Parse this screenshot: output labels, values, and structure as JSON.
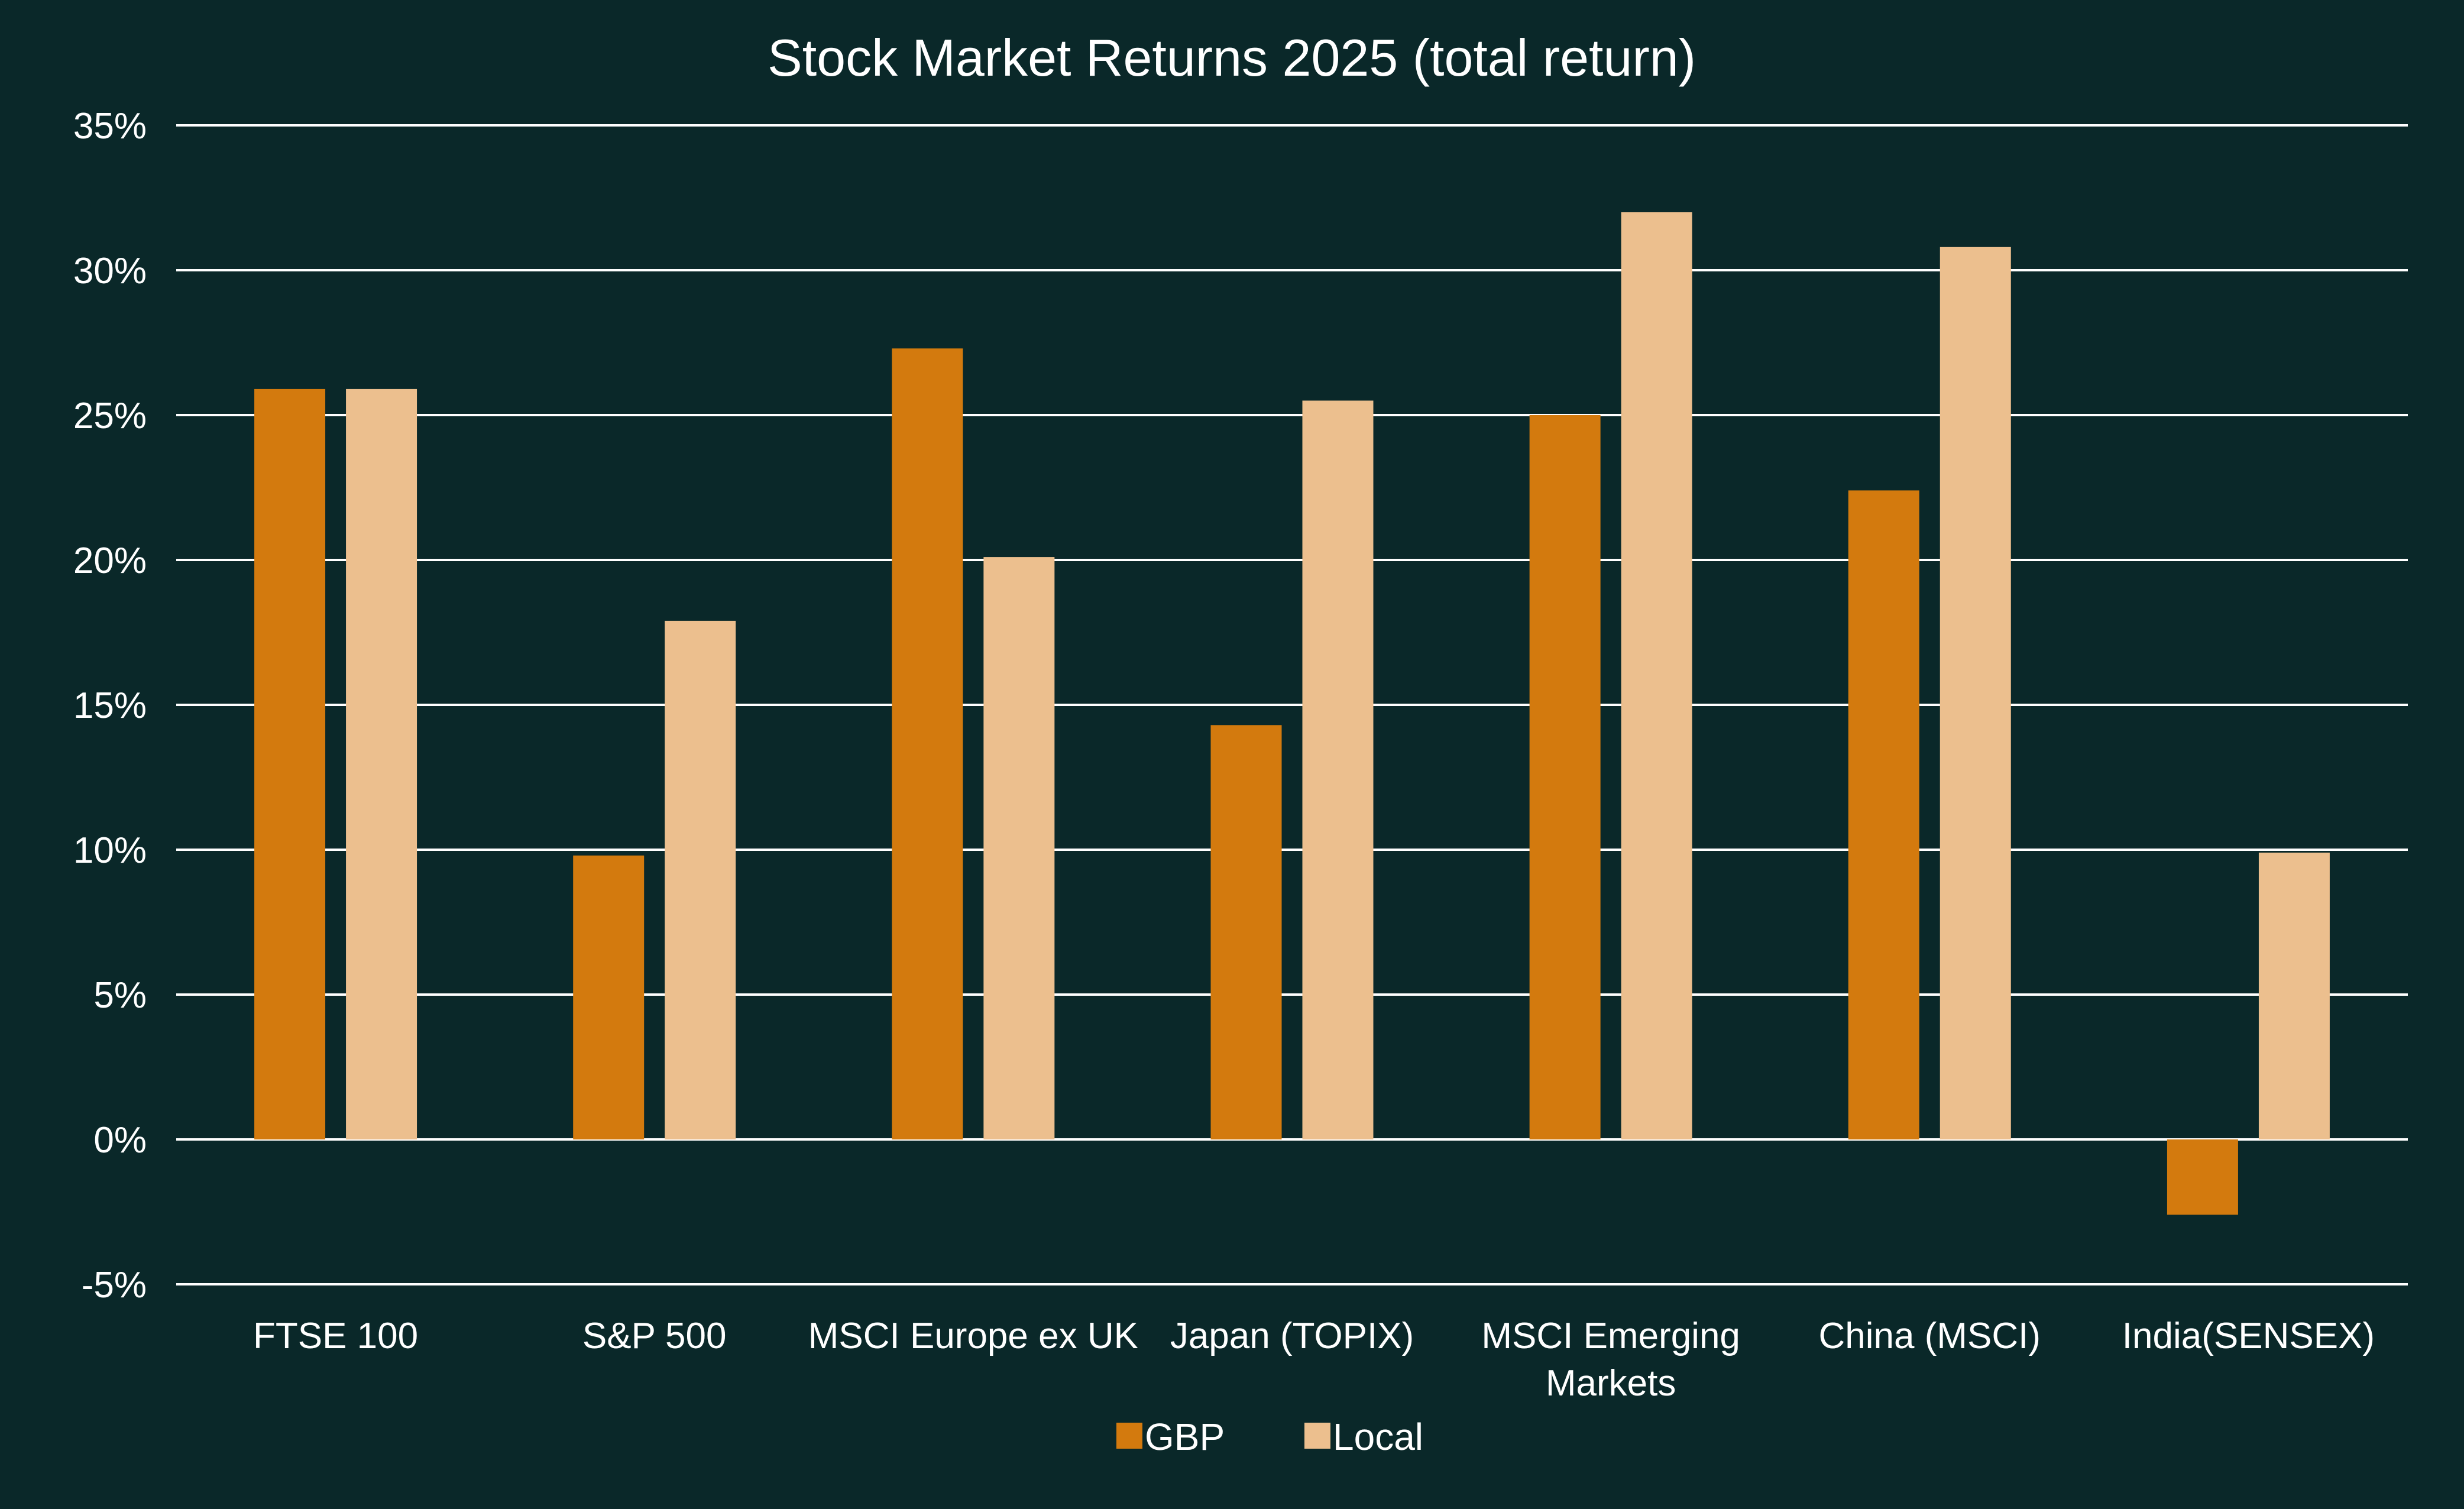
{
  "chart_data": {
    "type": "bar",
    "title": "Stock Market Returns 2025 (total return)",
    "xlabel": "",
    "ylabel": "",
    "categories": [
      "FTSE 100",
      "S&P 500",
      "MSCI Europe ex UK",
      "Japan (TOPIX)",
      "MSCI Emerging Markets",
      "China (MSCI)",
      "India(SENSEX)"
    ],
    "category_lines": [
      [
        "FTSE 100"
      ],
      [
        "S&P 500"
      ],
      [
        "MSCI Europe ex UK"
      ],
      [
        "Japan (TOPIX)"
      ],
      [
        "MSCI Emerging",
        "Markets"
      ],
      [
        "China (MSCI)"
      ],
      [
        "India(SENSEX)"
      ]
    ],
    "series": [
      {
        "name": "GBP",
        "color": "#d37a0e",
        "values": [
          25.9,
          9.8,
          27.3,
          14.3,
          25.0,
          22.4,
          -2.6
        ]
      },
      {
        "name": "Local",
        "color": "#ecbf8e",
        "values": [
          25.9,
          17.9,
          20.1,
          25.5,
          32.0,
          30.8,
          9.9
        ]
      }
    ],
    "ylim": [
      -5,
      35
    ],
    "yticks": [
      35,
      30,
      25,
      20,
      15,
      10,
      5,
      0,
      -5
    ],
    "ytick_labels": [
      "35%",
      "30%",
      "25%",
      "20%",
      "15%",
      "10%",
      "5%",
      "0%",
      "-5%"
    ],
    "grid": true,
    "legend": "bottom-center",
    "colors": {
      "background": "#0a2829",
      "gridline": "#ffffff",
      "text": "#ffffff"
    }
  }
}
